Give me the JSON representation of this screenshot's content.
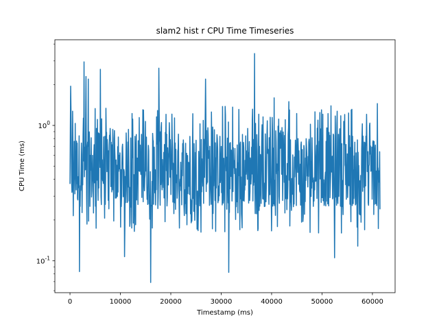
{
  "chart_data": {
    "type": "line",
    "title": "slam2 hist r CPU Time Timeseries",
    "xlabel": "Timestamp (ms)",
    "ylabel": "CPU Time (ms)",
    "xlim": [
      -3000,
      64500
    ],
    "ylim": [
      0.058,
      4.3
    ],
    "yscale": "log",
    "x_ticks": [
      0,
      10000,
      20000,
      30000,
      40000,
      50000,
      60000
    ],
    "x_tick_labels": [
      "0",
      "10000",
      "20000",
      "30000",
      "40000",
      "50000",
      "60000"
    ],
    "y_ticks": [
      0.1,
      1
    ],
    "y_tick_labels": [
      "10^-1",
      "10^0"
    ],
    "grid": false,
    "legend": "none",
    "color": "#1f77b4",
    "series": [
      {
        "x_start": 0,
        "x_end": 61500,
        "points": 950,
        "typical_range": [
          0.25,
          0.9
        ],
        "peaks": [
          [
            100,
            1.95
          ],
          [
            2800,
            2.95
          ],
          [
            3200,
            2.3
          ],
          [
            3600,
            2.2
          ],
          [
            6000,
            2.6
          ],
          [
            17600,
            2.65
          ],
          [
            26900,
            2.2
          ],
          [
            36600,
            3.4
          ],
          [
            40500,
            1.6
          ],
          [
            43400,
            1.5
          ],
          [
            55800,
            1.3
          ],
          [
            61000,
            1.45
          ]
        ],
        "dips": [
          [
            1900,
            0.083
          ],
          [
            10800,
            0.107
          ],
          [
            16000,
            0.069
          ],
          [
            31500,
            0.082
          ],
          [
            52500,
            0.105
          ],
          [
            57100,
            0.128
          ]
        ]
      }
    ]
  }
}
